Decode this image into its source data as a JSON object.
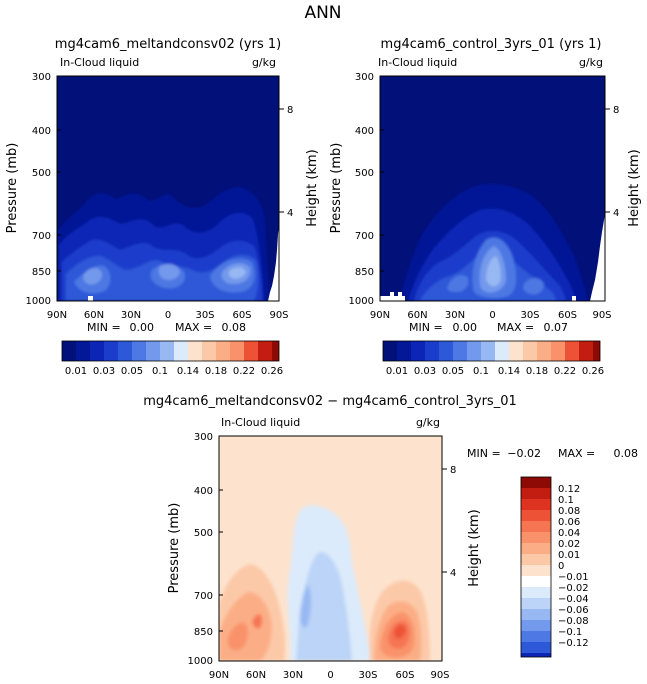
{
  "figure": {
    "title": "ANN",
    "colors": {
      "zero": "#FFFFFF",
      "positive_ramp": [
        "#FDE3CE",
        "#FCC9A8",
        "#FBAE86",
        "#F9926A",
        "#F57452",
        "#EE5236",
        "#DE3320",
        "#C31D12",
        "#8E0B05"
      ],
      "negative_ramp": [
        "#DCEBFB",
        "#BBD4F7",
        "#97B8F2",
        "#7399EC",
        "#4E78E3",
        "#2D59D8",
        "#1A3ECB",
        "#0C25B6",
        "#031896",
        "#021079"
      ]
    }
  },
  "chart_data": [
    {
      "type": "heatmap",
      "title": "mg4cam6_meltandconsv02 (yrs 1)",
      "variable": "In-Cloud liquid",
      "units": "g/kg",
      "xlabel": "",
      "ylabel": "Pressure (mb)",
      "y2label": "Height (km)",
      "x_ticks": [
        "90N",
        "60N",
        "30N",
        "0",
        "30S",
        "60S",
        "90S"
      ],
      "y_ticks": [
        300,
        400,
        500,
        700,
        850,
        1000
      ],
      "y2_ticks": [
        8,
        4
      ],
      "y_scale": "log",
      "ylim": [
        1000,
        300
      ],
      "xlim": [
        90,
        -90
      ],
      "min_label": "MIN =",
      "min_value": "0.00",
      "max_label": "MAX =",
      "max_value": "0.08",
      "colorbar_levels": [
        "0.01",
        "0.03",
        "0.05",
        "0.1",
        "0.14",
        "0.18",
        "0.22",
        "0.26"
      ],
      "features": [
        {
          "lat": 70,
          "p": 870,
          "value": 0.06
        },
        {
          "lat": 5,
          "p": 860,
          "value": 0.05
        },
        {
          "lat": -55,
          "p": 870,
          "value": 0.08
        }
      ]
    },
    {
      "type": "heatmap",
      "title": "mg4cam6_control_3yrs_01 (yrs 1)",
      "variable": "In-Cloud liquid",
      "units": "g/kg",
      "xlabel": "",
      "ylabel": "Pressure (mb)",
      "y2label": "Height (km)",
      "x_ticks": [
        "90N",
        "60N",
        "30N",
        "0",
        "30S",
        "60S",
        "90S"
      ],
      "y_ticks": [
        300,
        400,
        500,
        700,
        850,
        1000
      ],
      "y2_ticks": [
        8,
        4
      ],
      "y_scale": "log",
      "ylim": [
        1000,
        300
      ],
      "xlim": [
        90,
        -90
      ],
      "min_label": "MIN =",
      "min_value": "0.00",
      "max_label": "MAX =",
      "max_value": "0.07",
      "colorbar_levels": [
        "0.01",
        "0.03",
        "0.05",
        "0.1",
        "0.14",
        "0.18",
        "0.22",
        "0.26"
      ],
      "features": [
        {
          "lat": 5,
          "p": 800,
          "value": 0.07
        },
        {
          "lat": 45,
          "p": 870,
          "value": 0.05
        },
        {
          "lat": -45,
          "p": 880,
          "value": 0.05
        }
      ]
    },
    {
      "type": "heatmap",
      "title": "mg4cam6_meltandconsv02 − mg4cam6_control_3yrs_01",
      "variable": "In-Cloud liquid",
      "units": "g/kg",
      "xlabel": "",
      "ylabel": "Pressure (mb)",
      "y2label": "Height (km)",
      "x_ticks": [
        "90N",
        "60N",
        "30N",
        "0",
        "30S",
        "60S",
        "90S"
      ],
      "y_ticks": [
        300,
        400,
        500,
        700,
        850,
        1000
      ],
      "y2_ticks": [
        8,
        4
      ],
      "y_scale": "log",
      "ylim": [
        1000,
        300
      ],
      "xlim": [
        90,
        -90
      ],
      "min_label": "MIN =",
      "min_value": "−0.02",
      "max_label": "MAX =",
      "max_value": "0.08",
      "colorbar_levels": [
        "0.12",
        "0.1",
        "0.08",
        "0.06",
        "0.04",
        "0.02",
        "0.01",
        "0",
        "−0.01",
        "−0.02",
        "−0.04",
        "−0.06",
        "−0.08",
        "−0.1",
        "−0.12"
      ],
      "features": [
        {
          "lat": 70,
          "p": 870,
          "value": 0.06
        },
        {
          "lat": 15,
          "p": 780,
          "value": -0.02
        },
        {
          "lat": -60,
          "p": 870,
          "value": 0.08
        }
      ]
    }
  ]
}
